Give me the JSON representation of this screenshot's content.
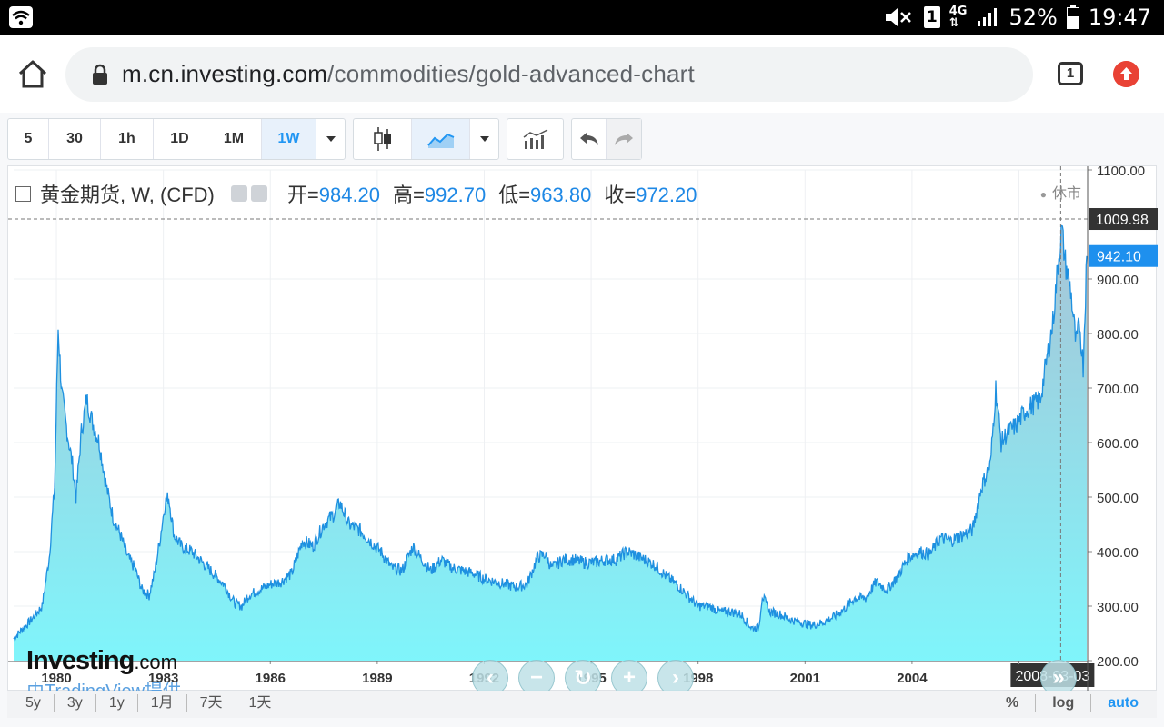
{
  "status_bar": {
    "battery": "52%",
    "time": "19:47",
    "sim": "1",
    "network": "4G"
  },
  "browser": {
    "url_host": "m.cn.investing.com",
    "url_path": "/commodities/gold-advanced-chart",
    "tab_count": "1"
  },
  "toolbar": {
    "intervals": [
      "5",
      "30",
      "1h",
      "1D",
      "1M",
      "1W"
    ],
    "active_interval": "1W"
  },
  "legend": {
    "symbol": "黄金期货, W, (CFD)",
    "open_label": "开=",
    "open": "984.20",
    "high_label": "高=",
    "high": "992.70",
    "low_label": "低=",
    "low": "963.80",
    "close_label": "收=",
    "close": "972.20",
    "market_status": "休市"
  },
  "logo": {
    "brand": "Investing",
    "brand_suffix": ".com",
    "provider": "由TradingView提供"
  },
  "chart_data": {
    "type": "area",
    "x_tick_labels": [
      "1980",
      "1983",
      "1986",
      "1989",
      "1992",
      "1995",
      "1998",
      "2001",
      "2004",
      "2"
    ],
    "y_tick_labels": [
      "1100.00",
      "900.00",
      "800.00",
      "700.00",
      "600.00",
      "500.00",
      "400.00",
      "300.00",
      "200.00"
    ],
    "y_ticks": [
      1100,
      900,
      800,
      700,
      600,
      500,
      400,
      300,
      200
    ],
    "ylim": [
      200,
      1100
    ],
    "xlim": [
      1978.8,
      2008.9
    ],
    "crosshair_price": "1009.98",
    "crosshair_value": 1009.98,
    "crosshair_date": "2008-03-03",
    "crosshair_x": 2008.17,
    "last_price": "942.10",
    "last_value": 942.1,
    "colors": {
      "line": "#1e90e0",
      "fill_top": "#a8c4d6",
      "fill_bottom": "#7ff5fb",
      "last_badge": "#1e90ee",
      "crosshair_badge": "#333333"
    },
    "points": [
      [
        1978.8,
        240
      ],
      [
        1979.0,
        255
      ],
      [
        1979.3,
        275
      ],
      [
        1979.6,
        300
      ],
      [
        1979.8,
        390
      ],
      [
        1979.95,
        520
      ],
      [
        1980.05,
        810
      ],
      [
        1980.15,
        690
      ],
      [
        1980.3,
        620
      ],
      [
        1980.45,
        560
      ],
      [
        1980.55,
        500
      ],
      [
        1980.7,
        620
      ],
      [
        1980.85,
        680
      ],
      [
        1981.0,
        640
      ],
      [
        1981.2,
        600
      ],
      [
        1981.4,
        520
      ],
      [
        1981.6,
        460
      ],
      [
        1981.8,
        430
      ],
      [
        1982.0,
        390
      ],
      [
        1982.2,
        370
      ],
      [
        1982.4,
        330
      ],
      [
        1982.6,
        320
      ],
      [
        1982.75,
        360
      ],
      [
        1982.9,
        420
      ],
      [
        1983.05,
        490
      ],
      [
        1983.15,
        500
      ],
      [
        1983.3,
        430
      ],
      [
        1983.5,
        410
      ],
      [
        1983.8,
        400
      ],
      [
        1984.1,
        380
      ],
      [
        1984.4,
        360
      ],
      [
        1984.7,
        340
      ],
      [
        1985.0,
        305
      ],
      [
        1985.2,
        300
      ],
      [
        1985.4,
        320
      ],
      [
        1985.7,
        330
      ],
      [
        1986.0,
        340
      ],
      [
        1986.3,
        345
      ],
      [
        1986.6,
        360
      ],
      [
        1986.9,
        420
      ],
      [
        1987.2,
        410
      ],
      [
        1987.5,
        450
      ],
      [
        1987.8,
        470
      ],
      [
        1987.95,
        490
      ],
      [
        1988.2,
        450
      ],
      [
        1988.5,
        440
      ],
      [
        1988.8,
        420
      ],
      [
        1989.1,
        400
      ],
      [
        1989.4,
        370
      ],
      [
        1989.7,
        365
      ],
      [
        1990.0,
        410
      ],
      [
        1990.2,
        390
      ],
      [
        1990.5,
        365
      ],
      [
        1990.8,
        385
      ],
      [
        1991.1,
        370
      ],
      [
        1991.4,
        365
      ],
      [
        1991.7,
        360
      ],
      [
        1992.0,
        350
      ],
      [
        1992.3,
        345
      ],
      [
        1992.6,
        340
      ],
      [
        1992.9,
        335
      ],
      [
        1993.2,
        340
      ],
      [
        1993.5,
        390
      ],
      [
        1993.7,
        395
      ],
      [
        1993.9,
        370
      ],
      [
        1994.2,
        385
      ],
      [
        1994.5,
        385
      ],
      [
        1994.8,
        380
      ],
      [
        1995.1,
        380
      ],
      [
        1995.4,
        385
      ],
      [
        1995.7,
        385
      ],
      [
        1996.0,
        400
      ],
      [
        1996.2,
        395
      ],
      [
        1996.5,
        385
      ],
      [
        1996.8,
        375
      ],
      [
        1997.1,
        355
      ],
      [
        1997.4,
        340
      ],
      [
        1997.7,
        320
      ],
      [
        1998.0,
        300
      ],
      [
        1998.3,
        300
      ],
      [
        1998.6,
        290
      ],
      [
        1998.9,
        290
      ],
      [
        1999.2,
        285
      ],
      [
        1999.5,
        260
      ],
      [
        1999.7,
        260
      ],
      [
        1999.8,
        320
      ],
      [
        2000.0,
        290
      ],
      [
        2000.3,
        285
      ],
      [
        2000.6,
        275
      ],
      [
        2000.9,
        270
      ],
      [
        2001.2,
        265
      ],
      [
        2001.5,
        270
      ],
      [
        2001.8,
        280
      ],
      [
        2002.1,
        295
      ],
      [
        2002.4,
        315
      ],
      [
        2002.7,
        315
      ],
      [
        2003.0,
        345
      ],
      [
        2003.3,
        330
      ],
      [
        2003.6,
        355
      ],
      [
        2003.9,
        390
      ],
      [
        2004.2,
        400
      ],
      [
        2004.5,
        395
      ],
      [
        2004.8,
        425
      ],
      [
        2005.1,
        420
      ],
      [
        2005.4,
        430
      ],
      [
        2005.7,
        440
      ],
      [
        2005.95,
        520
      ],
      [
        2006.2,
        560
      ],
      [
        2006.35,
        700
      ],
      [
        2006.5,
        600
      ],
      [
        2006.7,
        620
      ],
      [
        2006.9,
        630
      ],
      [
        2007.2,
        660
      ],
      [
        2007.4,
        670
      ],
      [
        2007.6,
        680
      ],
      [
        2007.8,
        760
      ],
      [
        2007.95,
        820
      ],
      [
        2008.1,
        930
      ],
      [
        2008.2,
        990
      ],
      [
        2008.3,
        930
      ],
      [
        2008.45,
        880
      ],
      [
        2008.6,
        780
      ],
      [
        2008.7,
        820
      ],
      [
        2008.8,
        740
      ],
      [
        2008.9,
        942
      ]
    ]
  },
  "nav_controls": [
    "‹",
    "−",
    "↻",
    "+",
    "›"
  ],
  "scroll_right_label": "»",
  "ranges": [
    "5y",
    "3y",
    "1y",
    "1月",
    "7天",
    "1天"
  ],
  "scale_options": [
    "%",
    "log",
    "auto"
  ]
}
